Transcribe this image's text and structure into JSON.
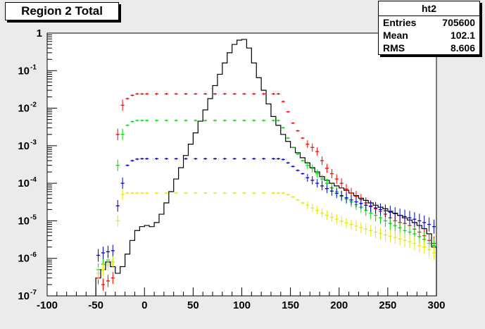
{
  "title": "Region 2 Total",
  "stats": {
    "name": "ht2",
    "rows": [
      {
        "label": "Entries",
        "value": "705600"
      },
      {
        "label": "Mean",
        "value": "102.1"
      },
      {
        "label": "RMS",
        "value": "8.606"
      }
    ]
  },
  "chart_data": {
    "type": "histogram",
    "log_y": true,
    "xlim": [
      -100,
      300
    ],
    "ylim": [
      1e-07,
      1
    ],
    "x_ticks": [
      -100,
      -50,
      0,
      50,
      100,
      150,
      200,
      250,
      300
    ],
    "y_ticks": [
      {
        "value": 1e-07,
        "base": "10",
        "exp": "-7"
      },
      {
        "value": 1e-06,
        "base": "10",
        "exp": "-6"
      },
      {
        "value": 1e-05,
        "base": "10",
        "exp": "-5"
      },
      {
        "value": 0.0001,
        "base": "10",
        "exp": "-4"
      },
      {
        "value": 0.001,
        "base": "10",
        "exp": "-3"
      },
      {
        "value": 0.01,
        "base": "10",
        "exp": "-2"
      },
      {
        "value": 0.1,
        "base": "10",
        "exp": "-1"
      },
      {
        "value": 1,
        "base": "1",
        "exp": ""
      }
    ],
    "series": [
      {
        "style": "histogram-step",
        "color": "#000000",
        "x": [
          -50,
          -45,
          -40,
          -35,
          -30,
          -25,
          -20,
          -15,
          -10,
          -5,
          0,
          5,
          10,
          15,
          20,
          25,
          30,
          35,
          40,
          45,
          50,
          55,
          60,
          65,
          70,
          75,
          80,
          85,
          90,
          95,
          100,
          105,
          110,
          115,
          120,
          125,
          130,
          135,
          140,
          145,
          150,
          155,
          160,
          165,
          170,
          175,
          180,
          185,
          190,
          195,
          200,
          205,
          210,
          215,
          220,
          225,
          230,
          235,
          240,
          245,
          250,
          255,
          260,
          265,
          270,
          275,
          280,
          285,
          290,
          295
        ],
        "y": [
          3e-07,
          5e-07,
          8e-07,
          6e-07,
          4e-07,
          6e-07,
          1.3e-06,
          3e-06,
          5.5e-06,
          7e-06,
          7.5e-06,
          7e-06,
          9e-06,
          1.5e-05,
          3e-05,
          6e-05,
          0.00013,
          0.00026,
          0.00055,
          0.0011,
          0.0022,
          0.0045,
          0.009,
          0.018,
          0.04,
          0.08,
          0.16,
          0.3,
          0.5,
          0.65,
          0.68,
          0.4,
          0.16,
          0.065,
          0.03,
          0.013,
          0.006,
          0.0035,
          0.002,
          0.0013,
          0.0009,
          0.00065,
          0.00048,
          0.00035,
          0.00026,
          0.0002,
          0.00015,
          0.00012,
          0.0001,
          8.5e-05,
          7.5e-05,
          6.5e-05,
          5.5e-05,
          4.7e-05,
          4e-05,
          3.5e-05,
          3e-05,
          2.6e-05,
          2.3e-05,
          2.1e-05,
          1.8e-05,
          1.6e-05,
          1.4e-05,
          1.2e-05,
          1.05e-05,
          9e-06,
          7.5e-06,
          6.2e-06,
          4.5e-06,
          2e-06
        ]
      },
      {
        "style": "markers",
        "color": "#ff0000",
        "x": [
          -50,
          -45,
          -40,
          -35,
          -30,
          -25,
          -20,
          -15,
          -10,
          -5,
          0,
          10,
          20,
          30,
          40,
          50,
          60,
          70,
          80,
          90,
          100,
          110,
          120,
          130,
          135,
          140,
          145,
          150,
          155,
          160,
          165,
          170,
          175,
          180,
          185,
          190,
          195,
          200,
          205,
          210,
          215,
          220,
          225,
          230,
          235,
          240,
          245,
          250,
          255,
          260,
          265,
          270,
          275,
          280,
          285,
          290,
          295
        ],
        "y": [
          3e-07,
          2e-07,
          2.5e-07,
          3e-07,
          0.002,
          0.012,
          0.018,
          0.022,
          0.024,
          0.024,
          0.024,
          0.024,
          0.024,
          0.024,
          0.024,
          0.024,
          0.024,
          0.024,
          0.024,
          0.024,
          0.024,
          0.024,
          0.024,
          0.024,
          0.024,
          0.015,
          0.008,
          0.004,
          0.0025,
          0.0016,
          0.0011,
          0.0009,
          0.0007,
          0.0004,
          0.00025,
          0.00018,
          0.00013,
          0.0001,
          7e-05,
          5.5e-05,
          4.5e-05,
          3.7e-05,
          3e-05,
          2.5e-05,
          2.1e-05,
          1.8e-05,
          1.5e-05,
          1.2e-05,
          1e-05,
          9e-06,
          8.5e-06,
          7.5e-06,
          6e-06,
          5e-06,
          4e-06,
          3e-06,
          2.5e-06
        ]
      },
      {
        "style": "markers",
        "color": "#00dd00",
        "x": [
          -50,
          -45,
          -40,
          -35,
          -30,
          -25,
          -20,
          -15,
          -10,
          -5,
          0,
          10,
          20,
          30,
          40,
          50,
          60,
          70,
          80,
          90,
          100,
          110,
          120,
          130,
          135,
          140,
          145,
          150,
          155,
          160,
          165,
          170,
          175,
          180,
          185,
          190,
          195,
          200,
          205,
          210,
          215,
          220,
          225,
          230,
          235,
          240,
          245,
          250,
          255,
          260,
          265,
          270,
          275,
          280,
          285,
          290,
          295
        ],
        "y": [
          5e-07,
          7e-07,
          9e-07,
          8e-07,
          0.0003,
          0.002,
          0.0035,
          0.0044,
          0.0047,
          0.0047,
          0.0047,
          0.0047,
          0.0047,
          0.0047,
          0.0047,
          0.0047,
          0.0047,
          0.0047,
          0.0047,
          0.0047,
          0.0047,
          0.0047,
          0.0047,
          0.0047,
          0.0047,
          0.003,
          0.0016,
          0.0009,
          0.0006,
          0.0004,
          0.0003,
          0.00025,
          0.00018,
          0.00013,
          0.0001,
          7.5e-05,
          6e-05,
          4.5e-05,
          3.8e-05,
          3.2e-05,
          2.7e-05,
          2.3e-05,
          1.9e-05,
          1.6e-05,
          1.4e-05,
          1.2e-05,
          1e-05,
          8.5e-06,
          7.5e-06,
          6.5e-06,
          5.5e-06,
          5e-06,
          4.5e-06,
          3.8e-06,
          3.2e-06,
          2.5e-06,
          2.2e-06
        ]
      },
      {
        "style": "markers",
        "color": "#0000cc",
        "x": [
          -50,
          -45,
          -40,
          -35,
          -30,
          -25,
          -20,
          -15,
          -10,
          -5,
          0,
          10,
          20,
          30,
          40,
          50,
          60,
          70,
          80,
          90,
          100,
          110,
          120,
          130,
          135,
          140,
          145,
          150,
          155,
          160,
          165,
          170,
          175,
          180,
          185,
          190,
          195,
          200,
          205,
          210,
          215,
          220,
          225,
          230,
          235,
          240,
          245,
          250,
          255,
          260,
          265,
          270,
          275,
          280,
          285,
          290,
          295
        ],
        "y": [
          1.2e-06,
          1.4e-06,
          1.5e-06,
          1.6e-06,
          2.5e-05,
          0.0001,
          0.0003,
          0.0004,
          0.00044,
          0.00045,
          0.00045,
          0.00045,
          0.00045,
          0.00045,
          0.00045,
          0.00045,
          0.00045,
          0.00045,
          0.00045,
          0.00045,
          0.00045,
          0.00045,
          0.00045,
          0.00045,
          0.00045,
          0.00043,
          0.00035,
          0.00028,
          0.00022,
          0.00018,
          0.00014,
          0.00012,
          0.0001,
          8.5e-05,
          7.2e-05,
          6.2e-05,
          5.4e-05,
          4.7e-05,
          4.1e-05,
          3.6e-05,
          3.2e-05,
          2.9e-05,
          2.6e-05,
          2.4e-05,
          2.2e-05,
          2e-05,
          1.85e-05,
          1.7e-05,
          1.55e-05,
          1.4e-05,
          1.3e-05,
          1.2e-05,
          1.1e-05,
          1e-05,
          9e-06,
          8e-06,
          7e-06
        ]
      },
      {
        "style": "markers",
        "color": "#e8e800",
        "x": [
          -50,
          -45,
          -40,
          -35,
          -30,
          -25,
          -20,
          -15,
          -10,
          -5,
          0,
          10,
          20,
          30,
          40,
          50,
          60,
          70,
          80,
          90,
          100,
          110,
          120,
          130,
          135,
          140,
          145,
          150,
          155,
          160,
          165,
          170,
          175,
          180,
          185,
          190,
          195,
          200,
          205,
          210,
          215,
          220,
          225,
          230,
          235,
          240,
          245,
          250,
          255,
          260,
          265,
          270,
          275,
          280,
          285,
          290,
          295
        ],
        "y": [
          4e-07,
          5e-07,
          7e-07,
          8e-07,
          1e-05,
          5e-05,
          5.5e-05,
          5.5e-05,
          5.5e-05,
          5.5e-05,
          5.5e-05,
          5.5e-05,
          5.5e-05,
          5.5e-05,
          5.5e-05,
          5.5e-05,
          5.5e-05,
          5.5e-05,
          5.5e-05,
          5.5e-05,
          5.5e-05,
          5.5e-05,
          5.5e-05,
          5.5e-05,
          5.5e-05,
          5.5e-05,
          5e-05,
          4.3e-05,
          3.6e-05,
          3e-05,
          2.6e-05,
          2.2e-05,
          1.9e-05,
          1.6e-05,
          1.4e-05,
          1.25e-05,
          1.1e-05,
          9.8e-06,
          8.8e-06,
          8e-06,
          7.2e-06,
          6.6e-06,
          6e-06,
          5.5e-06,
          5e-06,
          4.6e-06,
          4.2e-06,
          3.9e-06,
          3.6e-06,
          3.3e-06,
          3e-06,
          2.8e-06,
          2.5e-06,
          2.2e-06,
          2e-06,
          1.7e-06,
          1.4e-06
        ]
      }
    ]
  }
}
